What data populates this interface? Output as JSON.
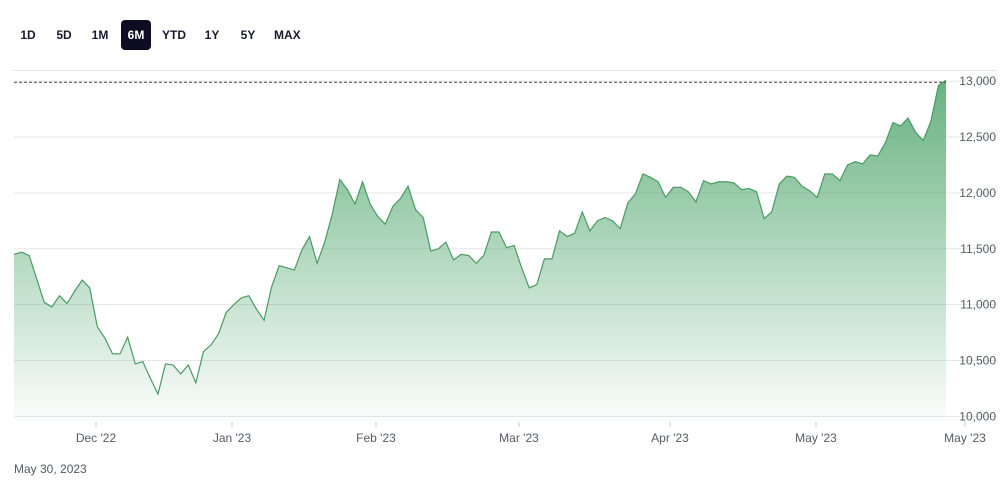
{
  "range_selector": {
    "buttons": [
      {
        "label": "1D",
        "active": false
      },
      {
        "label": "5D",
        "active": false
      },
      {
        "label": "1M",
        "active": false
      },
      {
        "label": "6M",
        "active": true
      },
      {
        "label": "YTD",
        "active": false
      },
      {
        "label": "1Y",
        "active": false
      },
      {
        "label": "5Y",
        "active": false
      },
      {
        "label": "MAX",
        "active": false
      }
    ]
  },
  "footer": {
    "date": "May 30, 2023"
  },
  "colors": {
    "line": "#4a9a64",
    "fill_top": "#5fae7a",
    "grid": "#e6e6e6",
    "active_button": "#0d0c22"
  },
  "chart_data": {
    "type": "area",
    "ylim": [
      9950,
      13100
    ],
    "y_ticks": [
      10000,
      10500,
      11000,
      11500,
      12000,
      12500,
      13000
    ],
    "y_tick_labels": [
      "10,000",
      "10,500",
      "11,000",
      "11,500",
      "12,000",
      "12,500",
      "13,000"
    ],
    "x_ticks": [
      "Dec '22",
      "Jan '23",
      "Feb '23",
      "Mar '23",
      "Apr '23",
      "May '23",
      "May '23"
    ],
    "reference_line": 12990,
    "grid": true,
    "series": [
      {
        "values": [
          11450,
          11470,
          11440,
          11230,
          11020,
          10980,
          11080,
          11010,
          11120,
          11220,
          11150,
          10800,
          10700,
          10560,
          10560,
          10710,
          10470,
          10490,
          10340,
          10200,
          10470,
          10460,
          10380,
          10460,
          10300,
          10580,
          10640,
          10740,
          10930,
          11000,
          11060,
          11080,
          10960,
          10860,
          11160,
          11350,
          11330,
          11310,
          11490,
          11610,
          11370,
          11560,
          11810,
          12120,
          12030,
          11900,
          12100,
          11900,
          11790,
          11720,
          11880,
          11950,
          12060,
          11850,
          11780,
          11480,
          11500,
          11560,
          11400,
          11450,
          11440,
          11370,
          11440,
          11650,
          11650,
          11510,
          11530,
          11330,
          11150,
          11180,
          11410,
          11410,
          11660,
          11610,
          11640,
          11830,
          11660,
          11750,
          11780,
          11750,
          11680,
          11910,
          11990,
          12170,
          12140,
          12100,
          11960,
          12050,
          12050,
          12010,
          11920,
          12110,
          12080,
          12100,
          12100,
          12090,
          12030,
          12040,
          12010,
          11770,
          11830,
          12080,
          12150,
          12140,
          12060,
          12020,
          11960,
          12170,
          12170,
          12110,
          12250,
          12280,
          12260,
          12340,
          12330,
          12450,
          12630,
          12600,
          12670,
          12540,
          12470,
          12640,
          12960,
          13010
        ]
      }
    ]
  }
}
